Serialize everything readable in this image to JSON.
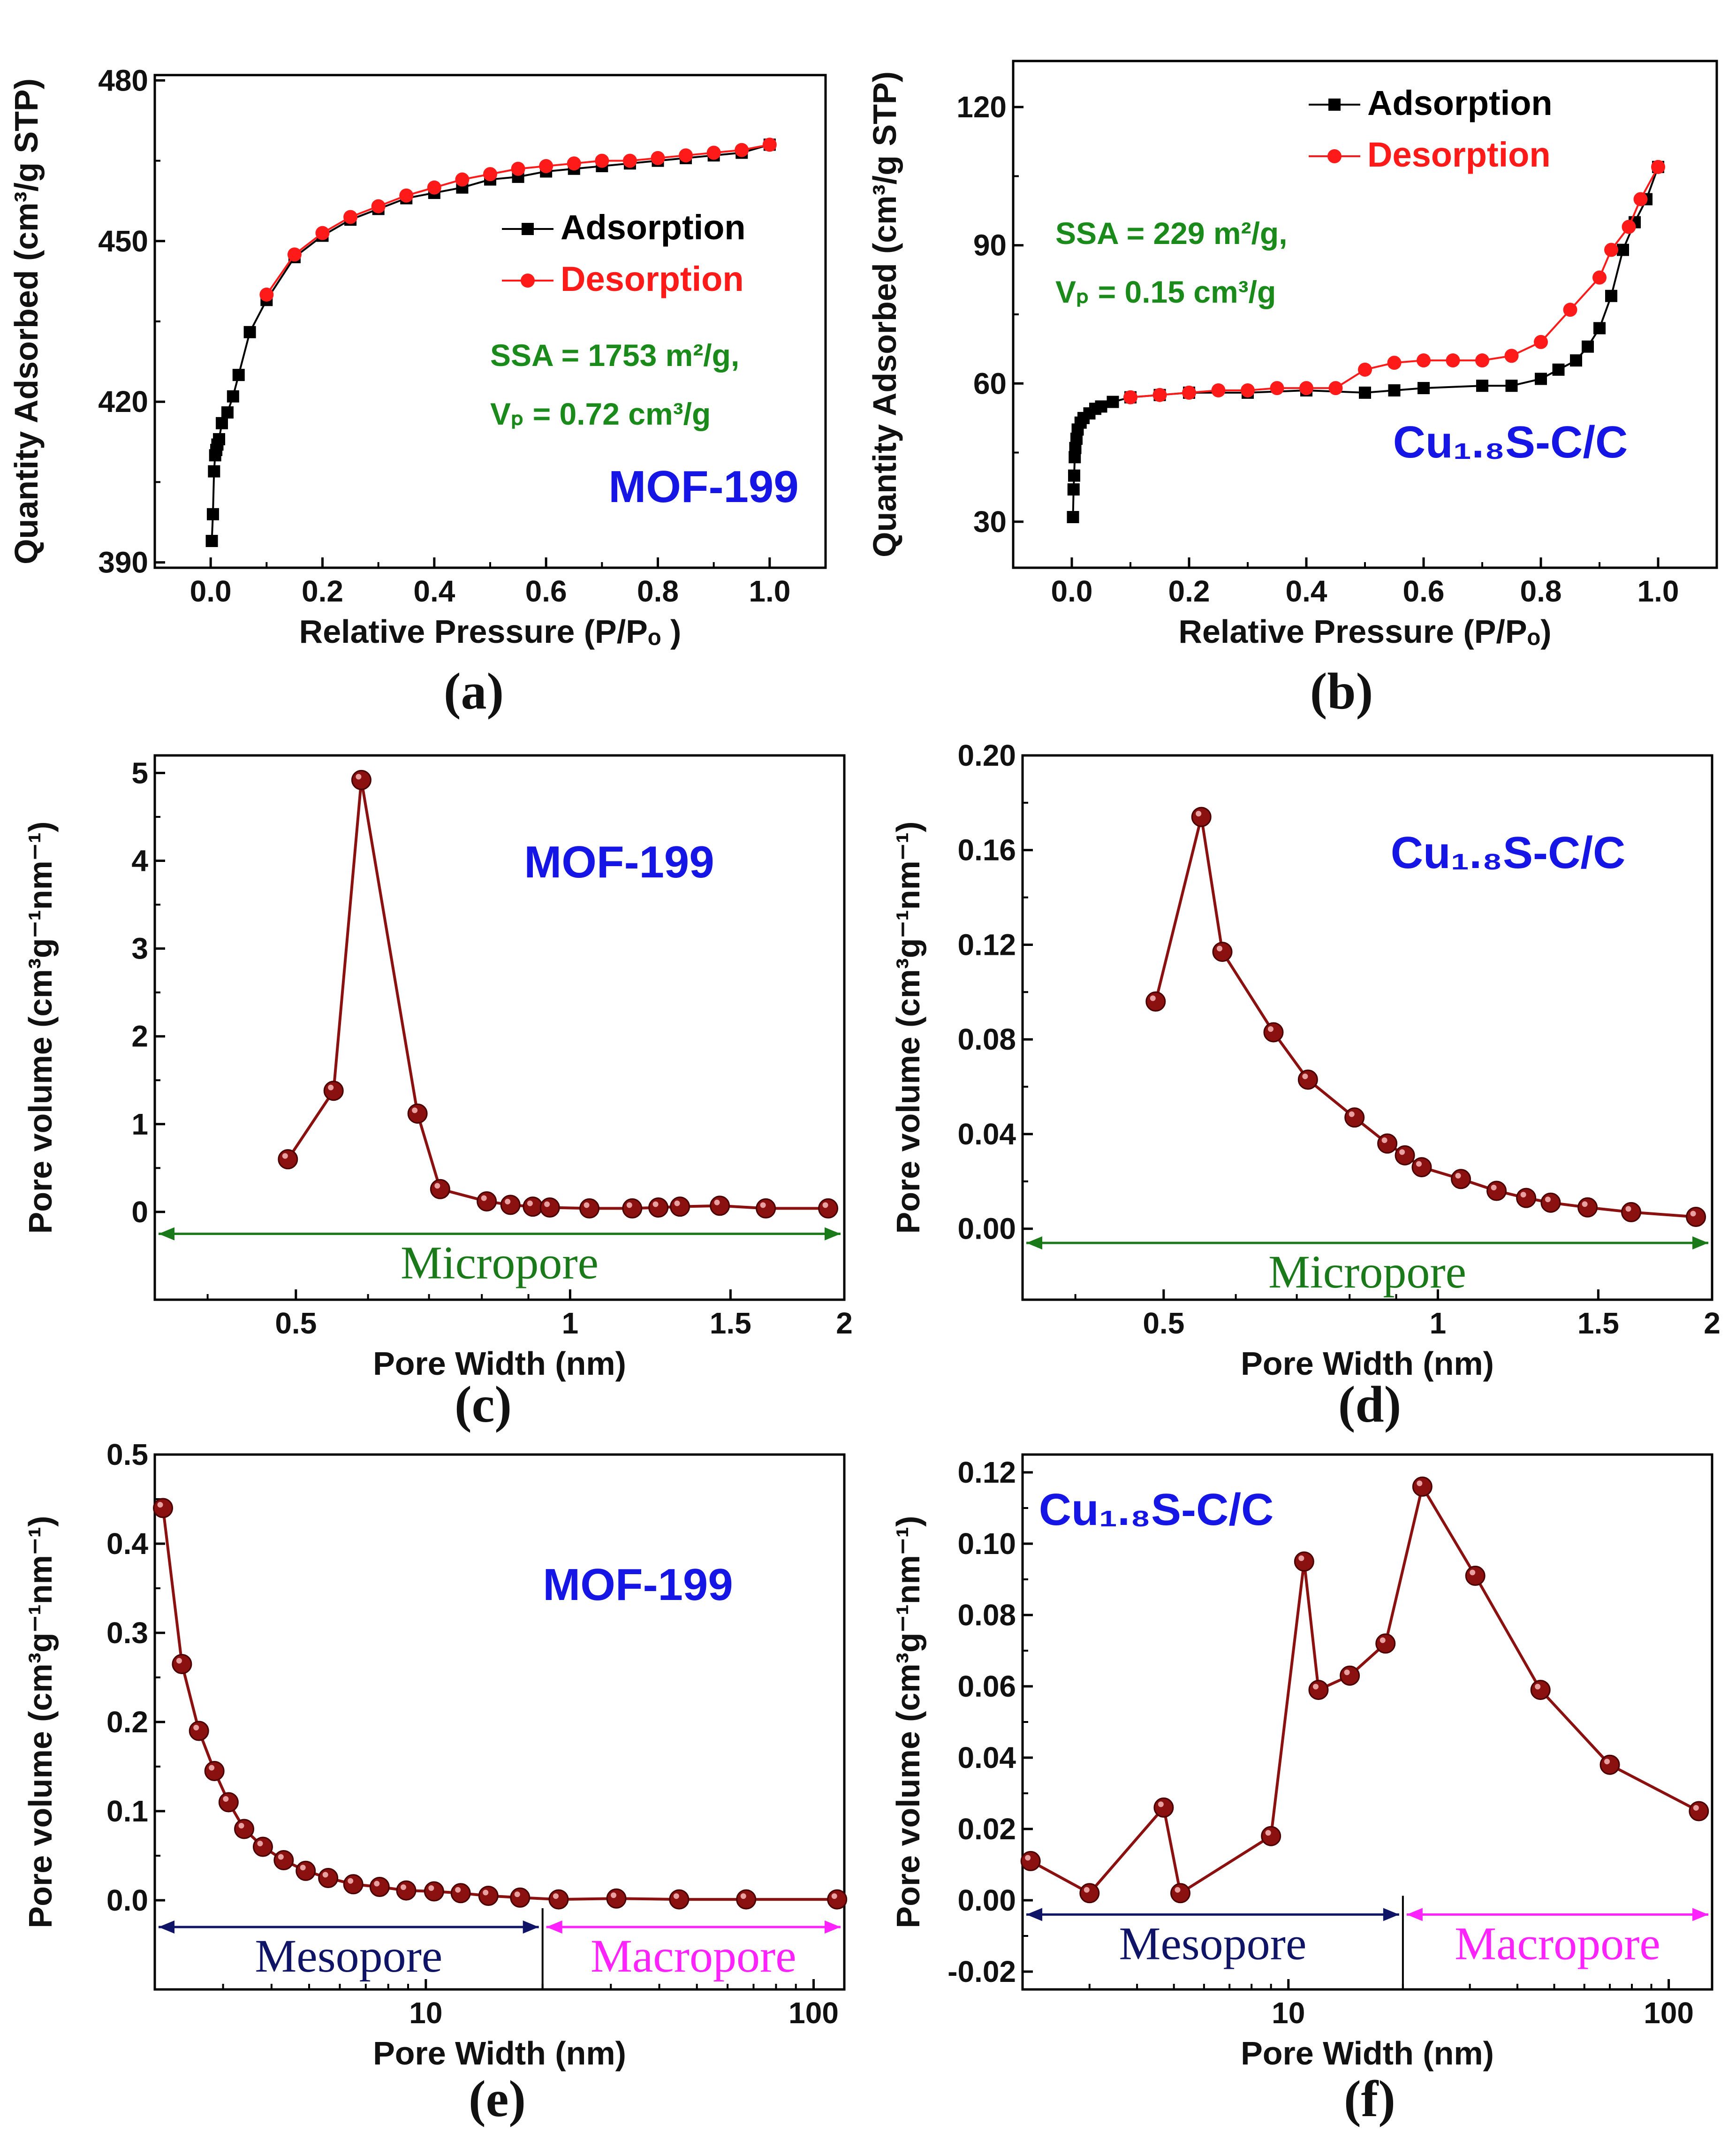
{
  "colors": {
    "adsorption": "#000000",
    "desorption": "#ff1a1a",
    "pore": "#8b1010",
    "sample": "#1515e6",
    "note": "#1a8a1a",
    "micro": "#1a7a1a",
    "meso": "#0f1466",
    "macro": "#ff22ff"
  },
  "chart_data": [
    {
      "panel": "(a)",
      "type": "line",
      "xlabel": "Relative Pressure (P/Pₒ )",
      "ylabel": "Quantity Adsorbed (cm³/g STP)",
      "xlim": [
        -0.1,
        1.1
      ],
      "ylim": [
        389,
        481
      ],
      "xticks": [
        {
          "v": 0.0,
          "t": "0.0"
        },
        {
          "v": 0.2,
          "t": "0.2"
        },
        {
          "v": 0.4,
          "t": "0.4"
        },
        {
          "v": 0.6,
          "t": "0.6"
        },
        {
          "v": 0.8,
          "t": "0.8"
        },
        {
          "v": 1.0,
          "t": "1.0"
        }
      ],
      "yticks": [
        {
          "v": 390,
          "t": "390"
        },
        {
          "v": 420,
          "t": "420"
        },
        {
          "v": 450,
          "t": "450"
        },
        {
          "v": 480,
          "t": "480"
        }
      ],
      "legend": [
        "Adsorption",
        "Desorption"
      ],
      "annotations": [
        "SSA = 1753 m²/g,",
        "Vₚ = 0.72 cm³/g"
      ],
      "sample": "MOF-199",
      "series": [
        {
          "name": "Adsorption",
          "marker": "square",
          "x": [
            0.002,
            0.004,
            0.006,
            0.008,
            0.01,
            0.012,
            0.015,
            0.02,
            0.03,
            0.04,
            0.05,
            0.07,
            0.1,
            0.15,
            0.2,
            0.25,
            0.3,
            0.35,
            0.4,
            0.45,
            0.5,
            0.55,
            0.6,
            0.65,
            0.7,
            0.75,
            0.8,
            0.85,
            0.9,
            0.95,
            1.0
          ],
          "y": [
            394,
            399,
            407,
            410,
            411,
            412,
            413,
            416,
            418,
            421,
            425,
            433,
            439,
            447,
            451,
            454,
            456,
            458,
            459,
            460,
            461.5,
            462,
            463,
            463.5,
            464,
            464.5,
            465,
            465.5,
            466,
            466.5,
            468
          ]
        },
        {
          "name": "Desorption",
          "marker": "circle",
          "x": [
            1.0,
            0.95,
            0.9,
            0.85,
            0.8,
            0.75,
            0.7,
            0.65,
            0.6,
            0.55,
            0.5,
            0.45,
            0.4,
            0.35,
            0.3,
            0.25,
            0.2,
            0.15,
            0.1
          ],
          "y": [
            468,
            467,
            466.5,
            466,
            465.5,
            465,
            465,
            464.5,
            464,
            463.5,
            462.5,
            461.5,
            460,
            458.5,
            456.5,
            454.5,
            451.5,
            447.5,
            440
          ]
        }
      ]
    },
    {
      "panel": "(b)",
      "type": "line",
      "xlabel": "Relative Pressure (P/Pₒ)",
      "ylabel": "Quantity Adsorbed (cm³/g STP)",
      "xlim": [
        -0.1,
        1.1
      ],
      "ylim": [
        20,
        130
      ],
      "xticks": [
        {
          "v": 0.0,
          "t": "0.0"
        },
        {
          "v": 0.2,
          "t": "0.2"
        },
        {
          "v": 0.4,
          "t": "0.4"
        },
        {
          "v": 0.6,
          "t": "0.6"
        },
        {
          "v": 0.8,
          "t": "0.8"
        },
        {
          "v": 1.0,
          "t": "1.0"
        }
      ],
      "yticks": [
        {
          "v": 30,
          "t": "30"
        },
        {
          "v": 60,
          "t": "60"
        },
        {
          "v": 90,
          "t": "90"
        },
        {
          "v": 120,
          "t": "120"
        }
      ],
      "legend": [
        "Adsorption",
        "Desorption"
      ],
      "annotations": [
        "SSA = 229 m²/g,",
        "Vₚ = 0.15 cm³/g"
      ],
      "sample": "Cu₁.₈S-C/C",
      "series": [
        {
          "name": "Adsorption",
          "marker": "square",
          "x": [
            0.002,
            0.003,
            0.004,
            0.005,
            0.006,
            0.008,
            0.01,
            0.015,
            0.02,
            0.03,
            0.04,
            0.05,
            0.07,
            0.1,
            0.15,
            0.2,
            0.3,
            0.4,
            0.5,
            0.55,
            0.6,
            0.7,
            0.75,
            0.8,
            0.83,
            0.86,
            0.88,
            0.9,
            0.92,
            0.94,
            0.96,
            0.98,
            1.0
          ],
          "y": [
            31,
            37,
            40,
            44,
            46,
            48,
            50,
            51.5,
            52.5,
            53.5,
            54.5,
            55,
            56,
            57,
            57.5,
            58,
            58,
            58.5,
            58,
            58.5,
            59,
            59.5,
            59.5,
            61,
            63,
            65,
            68,
            72,
            79,
            89,
            95,
            100,
            107
          ]
        },
        {
          "name": "Desorption",
          "marker": "circle",
          "x": [
            1.0,
            0.97,
            0.95,
            0.92,
            0.9,
            0.85,
            0.8,
            0.75,
            0.7,
            0.65,
            0.6,
            0.55,
            0.5,
            0.45,
            0.4,
            0.35,
            0.3,
            0.25,
            0.2,
            0.15,
            0.1
          ],
          "y": [
            107,
            100,
            94,
            89,
            83,
            76,
            69,
            66,
            65,
            65,
            65,
            64.5,
            63,
            59,
            59,
            59,
            58.5,
            58.5,
            58,
            57.5,
            57
          ]
        }
      ]
    },
    {
      "panel": "(c)",
      "type": "line",
      "xscale": "log",
      "xlabel": "Pore Width (nm)",
      "ylabel": "Pore volume (cm³g⁻¹nm⁻¹)",
      "xlim": [
        0.35,
        2.0
      ],
      "ylim": [
        -1.0,
        5.2
      ],
      "xticks": [
        {
          "v": 0.5,
          "t": "0.5"
        },
        {
          "v": 1,
          "t": "1"
        },
        {
          "v": 1.5,
          "t": "1.5"
        },
        {
          "v": 2,
          "t": "2"
        }
      ],
      "yticks": [
        {
          "v": 0,
          "t": "0"
        },
        {
          "v": 1,
          "t": "1"
        },
        {
          "v": 2,
          "t": "2"
        },
        {
          "v": 3,
          "t": "3"
        },
        {
          "v": 4,
          "t": "4"
        },
        {
          "v": 5,
          "t": "5"
        }
      ],
      "sample": "MOF-199",
      "regions": [
        {
          "label": "Micropore",
          "from": 0.35,
          "to": 2.0
        }
      ],
      "series": [
        {
          "name": "Pore volume",
          "marker": "sphere",
          "x": [
            0.49,
            0.55,
            0.59,
            0.68,
            0.72,
            0.81,
            0.86,
            0.91,
            0.95,
            1.05,
            1.17,
            1.25,
            1.32,
            1.46,
            1.64,
            1.92
          ],
          "y": [
            0.6,
            1.38,
            4.92,
            1.12,
            0.26,
            0.12,
            0.08,
            0.06,
            0.05,
            0.04,
            0.04,
            0.05,
            0.06,
            0.07,
            0.04,
            0.04
          ]
        }
      ]
    },
    {
      "panel": "(d)",
      "type": "line",
      "xscale": "log",
      "xlabel": "Pore Width (nm)",
      "ylabel": "Pore volume (cm³g⁻¹nm⁻¹)",
      "xlim": [
        0.35,
        2.0
      ],
      "ylim": [
        -0.03,
        0.2
      ],
      "xticks": [
        {
          "v": 0.5,
          "t": "0.5"
        },
        {
          "v": 1,
          "t": "1"
        },
        {
          "v": 1.5,
          "t": "1.5"
        },
        {
          "v": 2,
          "t": "2"
        }
      ],
      "yticks": [
        {
          "v": 0,
          "t": "0.00"
        },
        {
          "v": 0.04,
          "t": "0.04"
        },
        {
          "v": 0.08,
          "t": "0.08"
        },
        {
          "v": 0.12,
          "t": "0.12"
        },
        {
          "v": 0.16,
          "t": "0.16"
        },
        {
          "v": 0.2,
          "t": "0.20"
        }
      ],
      "sample": "Cu₁.₈S-C/C",
      "regions": [
        {
          "label": "Micropore",
          "from": 0.35,
          "to": 2.0
        }
      ],
      "series": [
        {
          "name": "Pore volume",
          "marker": "sphere",
          "x": [
            0.49,
            0.55,
            0.58,
            0.66,
            0.72,
            0.81,
            0.88,
            0.92,
            0.96,
            1.06,
            1.16,
            1.25,
            1.33,
            1.46,
            1.63,
            1.92
          ],
          "y": [
            0.096,
            0.174,
            0.117,
            0.083,
            0.063,
            0.047,
            0.036,
            0.031,
            0.026,
            0.021,
            0.016,
            0.013,
            0.011,
            0.009,
            0.007,
            0.005
          ]
        }
      ]
    },
    {
      "panel": "(e)",
      "type": "line",
      "xscale": "log",
      "xlabel": "Pore Width (nm)",
      "ylabel": "Pore volume (cm³g⁻¹nm⁻¹)",
      "xlim": [
        2.0,
        120
      ],
      "ylim": [
        -0.1,
        0.5
      ],
      "xticks": [
        {
          "v": 10,
          "t": "10"
        },
        {
          "v": 100,
          "t": "100"
        }
      ],
      "yticks": [
        {
          "v": 0,
          "t": "0.0"
        },
        {
          "v": 0.1,
          "t": "0.1"
        },
        {
          "v": 0.2,
          "t": "0.2"
        },
        {
          "v": 0.3,
          "t": "0.3"
        },
        {
          "v": 0.4,
          "t": "0.4"
        },
        {
          "v": 0.5,
          "t": "0.5"
        }
      ],
      "sample": "MOF-199",
      "regions": [
        {
          "label": "Mesopore",
          "from": 2.0,
          "to": 20
        },
        {
          "label": "Macropore",
          "from": 20,
          "to": 120
        }
      ],
      "series": [
        {
          "name": "Pore volume",
          "marker": "sphere",
          "x": [
            2.1,
            2.35,
            2.6,
            2.85,
            3.1,
            3.4,
            3.8,
            4.3,
            4.9,
            5.6,
            6.5,
            7.6,
            8.9,
            10.5,
            12.3,
            14.5,
            17.5,
            22,
            31,
            45,
            67,
            115
          ],
          "y": [
            0.44,
            0.265,
            0.19,
            0.145,
            0.11,
            0.08,
            0.06,
            0.045,
            0.033,
            0.025,
            0.018,
            0.015,
            0.011,
            0.01,
            0.008,
            0.005,
            0.003,
            0.001,
            0.002,
            0.001,
            0.001,
            0.001
          ]
        }
      ]
    },
    {
      "panel": "(f)",
      "type": "line",
      "xscale": "log",
      "xlabel": "Pore Width (nm)",
      "ylabel": "Pore volume (cm³g⁻¹nm⁻¹)",
      "xlim": [
        2.0,
        130
      ],
      "ylim": [
        -0.025,
        0.125
      ],
      "xticks": [
        {
          "v": 10,
          "t": "10"
        },
        {
          "v": 100,
          "t": "100"
        }
      ],
      "yticks": [
        {
          "v": -0.02,
          "t": "-0.02"
        },
        {
          "v": 0,
          "t": "0.00"
        },
        {
          "v": 0.02,
          "t": "0.02"
        },
        {
          "v": 0.04,
          "t": "0.04"
        },
        {
          "v": 0.06,
          "t": "0.06"
        },
        {
          "v": 0.08,
          "t": "0.08"
        },
        {
          "v": 0.1,
          "t": "0.10"
        },
        {
          "v": 0.12,
          "t": "0.12"
        }
      ],
      "sample": "Cu₁.₈S-C/C",
      "regions": [
        {
          "label": "Mesopore",
          "from": 2.0,
          "to": 20
        },
        {
          "label": "Macropore",
          "from": 20,
          "to": 130
        }
      ],
      "series": [
        {
          "name": "Pore volume",
          "marker": "sphere",
          "x": [
            2.1,
            3.0,
            4.7,
            5.2,
            9.0,
            11.0,
            12.0,
            14.5,
            18,
            22.5,
            31,
            46,
            70,
            120
          ],
          "y": [
            0.011,
            0.002,
            0.026,
            0.002,
            0.018,
            0.095,
            0.059,
            0.063,
            0.072,
            0.116,
            0.091,
            0.059,
            0.038,
            0.025
          ]
        }
      ]
    }
  ]
}
